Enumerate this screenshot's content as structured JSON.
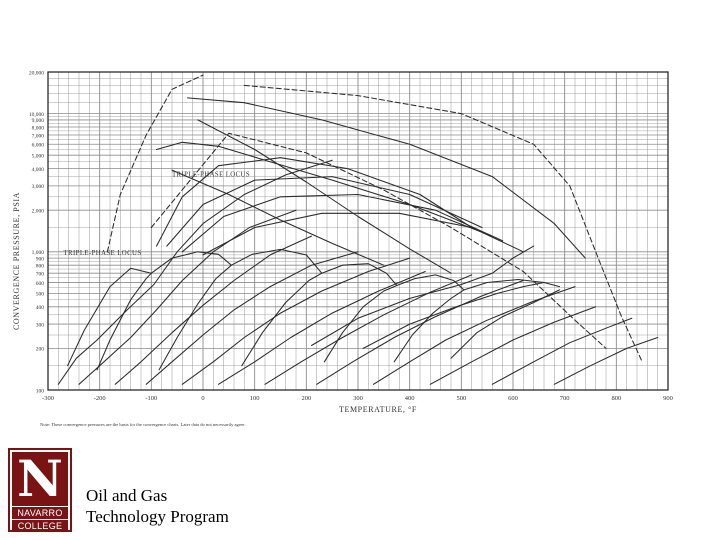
{
  "chart_data": {
    "type": "line",
    "title": "",
    "xlabel": "TEMPERATURE, °F",
    "ylabel": "CONVERGENCE PRESSURE, PSIA",
    "xlim": [
      -300,
      900
    ],
    "ylim": [
      100,
      20000
    ],
    "yscale": "log",
    "grid": true,
    "x_ticks": [
      {
        "value": -300,
        "label": "-300"
      },
      {
        "value": -200,
        "label": "-200"
      },
      {
        "value": -100,
        "label": "-100"
      },
      {
        "value": 0,
        "label": "0"
      },
      {
        "value": 100,
        "label": "100"
      },
      {
        "value": 200,
        "label": "200"
      },
      {
        "value": 300,
        "label": "300"
      },
      {
        "value": 400,
        "label": "400"
      },
      {
        "value": 500,
        "label": "500"
      },
      {
        "value": 600,
        "label": "600"
      },
      {
        "value": 700,
        "label": "700"
      },
      {
        "value": 800,
        "label": "800"
      },
      {
        "value": 900,
        "label": "900"
      }
    ],
    "y_ticks": [
      {
        "value": 20000,
        "label": "20,000"
      },
      {
        "value": 10000,
        "label": "10,000"
      },
      {
        "value": 9000,
        "label": "9,000"
      },
      {
        "value": 8000,
        "label": "8,000"
      },
      {
        "value": 7000,
        "label": "7,000"
      },
      {
        "value": 6000,
        "label": "6,000"
      },
      {
        "value": 5000,
        "label": "5,000"
      },
      {
        "value": 4000,
        "label": "4,000"
      },
      {
        "value": 3000,
        "label": "3,000"
      },
      {
        "value": 2000,
        "label": "2,000"
      },
      {
        "value": 1000,
        "label": "1,000"
      },
      {
        "value": 900,
        "label": "900"
      },
      {
        "value": 800,
        "label": "800"
      },
      {
        "value": 700,
        "label": "700"
      },
      {
        "value": 600,
        "label": "600"
      },
      {
        "value": 500,
        "label": "500"
      },
      {
        "value": 400,
        "label": "400"
      },
      {
        "value": 300,
        "label": "300"
      },
      {
        "value": 200,
        "label": "200"
      },
      {
        "value": 100,
        "label": "100"
      }
    ],
    "annotations": [
      {
        "text": "TRIPLE-PHASE LOCUS",
        "x": -60,
        "y": 3500
      },
      {
        "text": "TRIPLE-PHASE LOCUS",
        "x": -270,
        "y": 950
      }
    ],
    "note": "Note: These convergence pressures are the basis for the convergence charts. Later data do not necessarily agree.",
    "series": [
      {
        "style": "solid",
        "points": [
          [
            -262,
            150
          ],
          [
            -230,
            270
          ],
          [
            -180,
            560
          ],
          [
            -140,
            760
          ],
          [
            -100,
            700
          ]
        ]
      },
      {
        "style": "solid",
        "points": [
          [
            -205,
            140
          ],
          [
            -180,
            230
          ],
          [
            -140,
            450
          ],
          [
            -110,
            640
          ],
          [
            -100,
            700
          ]
        ]
      },
      {
        "style": "solid",
        "points": [
          [
            -100,
            700
          ],
          [
            -60,
            900
          ],
          [
            -10,
            1000
          ],
          [
            30,
            960
          ],
          [
            55,
            800
          ]
        ]
      },
      {
        "style": "solid",
        "points": [
          [
            -85,
            140
          ],
          [
            -50,
            240
          ],
          [
            -10,
            420
          ],
          [
            25,
            640
          ],
          [
            55,
            800
          ]
        ]
      },
      {
        "style": "solid",
        "points": [
          [
            55,
            800
          ],
          [
            95,
            960
          ],
          [
            150,
            1040
          ],
          [
            200,
            950
          ],
          [
            230,
            700
          ]
        ]
      },
      {
        "style": "solid",
        "points": [
          [
            75,
            150
          ],
          [
            115,
            260
          ],
          [
            160,
            430
          ],
          [
            205,
            620
          ],
          [
            230,
            700
          ]
        ]
      },
      {
        "style": "solid",
        "points": [
          [
            230,
            700
          ],
          [
            270,
            800
          ],
          [
            320,
            820
          ],
          [
            355,
            700
          ],
          [
            375,
            570
          ]
        ]
      },
      {
        "style": "solid",
        "points": [
          [
            235,
            160
          ],
          [
            270,
            260
          ],
          [
            310,
            400
          ],
          [
            350,
            520
          ],
          [
            375,
            570
          ]
        ]
      },
      {
        "style": "solid",
        "points": [
          [
            375,
            570
          ],
          [
            410,
            640
          ],
          [
            450,
            680
          ],
          [
            485,
            620
          ],
          [
            505,
            530
          ]
        ]
      },
      {
        "style": "solid",
        "points": [
          [
            370,
            160
          ],
          [
            405,
            250
          ],
          [
            445,
            360
          ],
          [
            480,
            460
          ],
          [
            505,
            530
          ]
        ]
      },
      {
        "style": "solid",
        "points": [
          [
            505,
            530
          ],
          [
            550,
            600
          ],
          [
            610,
            630
          ],
          [
            660,
            600
          ],
          [
            690,
            560
          ]
        ]
      },
      {
        "style": "solid",
        "points": [
          [
            480,
            170
          ],
          [
            530,
            260
          ],
          [
            580,
            340
          ],
          [
            640,
            430
          ],
          [
            690,
            530
          ]
        ]
      },
      {
        "style": "solid",
        "points": [
          [
            -90,
            1100
          ],
          [
            -40,
            2500
          ],
          [
            30,
            4200
          ],
          [
            150,
            4800
          ],
          [
            280,
            4000
          ],
          [
            420,
            2600
          ],
          [
            520,
            1500
          ]
        ]
      },
      {
        "style": "solid",
        "points": [
          [
            -70,
            1100
          ],
          [
            0,
            2200
          ],
          [
            100,
            3300
          ],
          [
            250,
            3500
          ],
          [
            400,
            2600
          ],
          [
            540,
            1500
          ]
        ]
      },
      {
        "style": "solid",
        "points": [
          [
            -40,
            1000
          ],
          [
            40,
            1800
          ],
          [
            150,
            2500
          ],
          [
            300,
            2600
          ],
          [
            450,
            2000
          ],
          [
            580,
            1200
          ]
        ]
      },
      {
        "style": "solid",
        "points": [
          [
            0,
            950
          ],
          [
            100,
            1500
          ],
          [
            230,
            1900
          ],
          [
            380,
            1900
          ],
          [
            520,
            1500
          ],
          [
            620,
            1000
          ]
        ]
      },
      {
        "style": "solid",
        "points": [
          [
            -90,
            5500
          ],
          [
            -40,
            6200
          ],
          [
            30,
            5800
          ],
          [
            120,
            4600
          ],
          [
            250,
            3300
          ],
          [
            400,
            2200
          ],
          [
            560,
            1300
          ]
        ]
      },
      {
        "style": "solid",
        "points": [
          [
            -30,
            13000
          ],
          [
            80,
            12000
          ],
          [
            230,
            9000
          ],
          [
            400,
            6000
          ],
          [
            560,
            3500
          ],
          [
            680,
            1600
          ],
          [
            740,
            900
          ]
        ]
      },
      {
        "style": "dashed",
        "points": [
          [
            -185,
            1000
          ],
          [
            -160,
            2600
          ],
          [
            -110,
            7000
          ],
          [
            -60,
            15000
          ],
          [
            0,
            19000
          ]
        ]
      },
      {
        "style": "dashed",
        "points": [
          [
            80,
            16000
          ],
          [
            300,
            13500
          ],
          [
            500,
            10000
          ],
          [
            640,
            6000
          ],
          [
            710,
            3000
          ],
          [
            760,
            1000
          ],
          [
            810,
            340
          ],
          [
            850,
            160
          ]
        ]
      },
      {
        "style": "dashed",
        "points": [
          [
            -100,
            1500
          ],
          [
            50,
            7200
          ],
          [
            200,
            5200
          ],
          [
            350,
            2800
          ],
          [
            480,
            1500
          ],
          [
            620,
            720
          ],
          [
            720,
            320
          ],
          [
            780,
            200
          ]
        ]
      },
      {
        "style": "solid",
        "points": [
          [
            -280,
            110
          ],
          [
            -245,
            170
          ],
          [
            -205,
            230
          ],
          [
            -150,
            370
          ],
          [
            -95,
            580
          ],
          [
            -50,
            1000
          ],
          [
            0,
            1600
          ],
          [
            80,
            2600
          ],
          [
            160,
            3600
          ],
          [
            250,
            4600
          ]
        ]
      },
      {
        "style": "solid",
        "points": [
          [
            -240,
            110
          ],
          [
            -200,
            150
          ],
          [
            -140,
            240
          ],
          [
            -90,
            380
          ],
          [
            -40,
            620
          ],
          [
            20,
            1000
          ],
          [
            90,
            1500
          ],
          [
            180,
            2000
          ]
        ]
      },
      {
        "style": "solid",
        "points": [
          [
            -170,
            110
          ],
          [
            -120,
            160
          ],
          [
            -60,
            260
          ],
          [
            0,
            410
          ],
          [
            60,
            620
          ],
          [
            130,
            950
          ],
          [
            210,
            1300
          ]
        ]
      },
      {
        "style": "solid",
        "points": [
          [
            -110,
            110
          ],
          [
            -60,
            160
          ],
          [
            0,
            250
          ],
          [
            60,
            380
          ],
          [
            130,
            560
          ],
          [
            210,
            800
          ],
          [
            300,
            1000
          ]
        ]
      },
      {
        "style": "solid",
        "points": [
          [
            -40,
            110
          ],
          [
            20,
            160
          ],
          [
            80,
            240
          ],
          [
            150,
            360
          ],
          [
            230,
            520
          ],
          [
            320,
            720
          ],
          [
            400,
            900
          ]
        ]
      },
      {
        "style": "solid",
        "points": [
          [
            30,
            110
          ],
          [
            100,
            160
          ],
          [
            170,
            240
          ],
          [
            250,
            360
          ],
          [
            340,
            520
          ],
          [
            430,
            720
          ]
        ]
      },
      {
        "style": "solid",
        "points": [
          [
            120,
            110
          ],
          [
            190,
            160
          ],
          [
            270,
            240
          ],
          [
            350,
            350
          ],
          [
            440,
            510
          ],
          [
            520,
            680
          ]
        ]
      },
      {
        "style": "solid",
        "points": [
          [
            220,
            110
          ],
          [
            290,
            160
          ],
          [
            370,
            240
          ],
          [
            450,
            340
          ],
          [
            540,
            480
          ],
          [
            620,
            620
          ]
        ]
      },
      {
        "style": "solid",
        "points": [
          [
            330,
            110
          ],
          [
            400,
            160
          ],
          [
            470,
            230
          ],
          [
            550,
            320
          ],
          [
            640,
            440
          ],
          [
            720,
            560
          ]
        ]
      },
      {
        "style": "solid",
        "points": [
          [
            440,
            110
          ],
          [
            520,
            160
          ],
          [
            600,
            230
          ],
          [
            680,
            310
          ],
          [
            760,
            400
          ]
        ]
      },
      {
        "style": "solid",
        "points": [
          [
            560,
            110
          ],
          [
            640,
            160
          ],
          [
            710,
            220
          ],
          [
            780,
            280
          ],
          [
            830,
            330
          ]
        ]
      },
      {
        "style": "solid",
        "points": [
          [
            680,
            110
          ],
          [
            750,
            150
          ],
          [
            820,
            200
          ],
          [
            880,
            240
          ]
        ]
      },
      {
        "style": "solid",
        "points": [
          [
            210,
            210
          ],
          [
            300,
            330
          ],
          [
            400,
            460
          ],
          [
            500,
            580
          ],
          [
            560,
            700
          ],
          [
            600,
            900
          ],
          [
            640,
            1100
          ]
        ]
      },
      {
        "style": "solid",
        "points": [
          [
            310,
            200
          ],
          [
            400,
            300
          ],
          [
            490,
            400
          ],
          [
            570,
            500
          ],
          [
            620,
            560
          ],
          [
            660,
            600
          ]
        ]
      },
      {
        "style": "solid",
        "points": [
          [
            -10,
            9000
          ],
          [
            100,
            5500
          ],
          [
            200,
            3200
          ],
          [
            300,
            1800
          ],
          [
            400,
            1050
          ],
          [
            480,
            700
          ]
        ]
      },
      {
        "style": "solid",
        "points": [
          [
            -60,
            3900
          ],
          [
            50,
            2600
          ],
          [
            150,
            1700
          ],
          [
            250,
            1150
          ],
          [
            350,
            800
          ]
        ]
      }
    ]
  },
  "footer": {
    "logo_top": "N",
    "logo_line1": "NAVARRO",
    "logo_line2": "COLLEGE",
    "program_line1": "Oil and Gas",
    "program_line2": "Technology Program"
  },
  "colors": {
    "ink": "#2b2b2b",
    "grid": "#8c8c8c",
    "logo_red": "#7a1414"
  }
}
